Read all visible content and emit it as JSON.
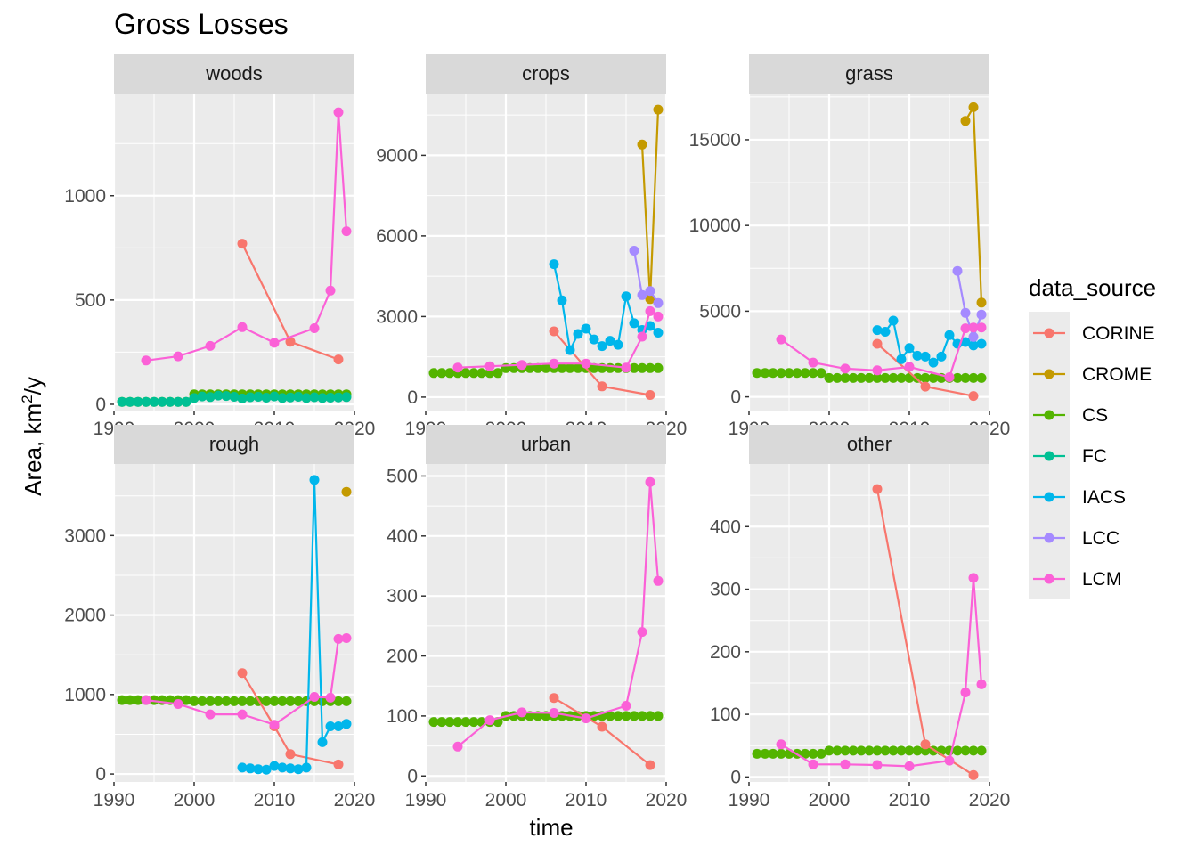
{
  "chart_data": {
    "type": "line",
    "title": "Gross Losses",
    "xlabel": "time",
    "ylabel_prefix": "Area,  km",
    "ylabel_sup": "2",
    "ylabel_suffix": "/y",
    "xlim": [
      1990,
      2020
    ],
    "xticks": [
      1990,
      2000,
      2010,
      2020
    ],
    "legend": {
      "title": "data_source",
      "position": "right"
    },
    "series_colors": {
      "CORINE": "#F8766D",
      "CROME": "#C49A00",
      "CS": "#53B400",
      "FC": "#00C094",
      "IACS": "#00B6EB",
      "LCC": "#A58AFF",
      "LCM": "#FB61D7"
    },
    "panels": [
      {
        "label": "woods",
        "ylim": [
          -30,
          1490
        ],
        "yticks": [
          0,
          500,
          1000
        ],
        "series": [
          {
            "name": "CS",
            "x": [
              1991,
              1992,
              1993,
              1994,
              1995,
              1996,
              1997,
              1998,
              1999,
              2000,
              2001,
              2002,
              2003,
              2004,
              2005,
              2006,
              2007,
              2008,
              2009,
              2010,
              2011,
              2012,
              2013,
              2014,
              2015,
              2016,
              2017,
              2018,
              2019
            ],
            "y": [
              12,
              12,
              12,
              12,
              12,
              12,
              12,
              12,
              12,
              48,
              48,
              48,
              48,
              48,
              48,
              48,
              48,
              48,
              48,
              48,
              48,
              48,
              48,
              48,
              48,
              48,
              48,
              48,
              48
            ]
          },
          {
            "name": "FC",
            "x": [
              1991,
              1992,
              1993,
              1994,
              1995,
              1996,
              1997,
              1998,
              1999,
              2000,
              2001,
              2002,
              2003,
              2004,
              2005,
              2006,
              2007,
              2008,
              2009,
              2010,
              2011,
              2012,
              2013,
              2014,
              2015,
              2016,
              2017,
              2018,
              2019
            ],
            "y": [
              12,
              12,
              12,
              12,
              12,
              12,
              12,
              12,
              12,
              30,
              38,
              35,
              42,
              40,
              36,
              28,
              34,
              36,
              32,
              38,
              30,
              33,
              36,
              30,
              34,
              30,
              32,
              33,
              35
            ]
          },
          {
            "name": "CORINE",
            "x": [
              2006,
              2012,
              2018
            ],
            "y": [
              770,
              300,
              215
            ]
          },
          {
            "name": "LCM",
            "x": [
              1994,
              1998,
              2002,
              2006,
              2010,
              2015,
              2017,
              2018,
              2019
            ],
            "y": [
              210,
              230,
              280,
              370,
              295,
              365,
              545,
              1400,
              830
            ]
          }
        ]
      },
      {
        "label": "crops",
        "ylim": [
          -500,
          11300
        ],
        "yticks": [
          0,
          3000,
          6000,
          9000
        ],
        "series": [
          {
            "name": "CS",
            "x": [
              1991,
              1992,
              1993,
              1994,
              1995,
              1996,
              1997,
              1998,
              1999,
              2000,
              2001,
              2002,
              2003,
              2004,
              2005,
              2006,
              2007,
              2008,
              2009,
              2010,
              2011,
              2012,
              2013,
              2014,
              2015,
              2016,
              2017,
              2018,
              2019
            ],
            "y": [
              900,
              900,
              900,
              900,
              900,
              900,
              900,
              900,
              900,
              1080,
              1080,
              1080,
              1080,
              1080,
              1080,
              1080,
              1080,
              1080,
              1080,
              1080,
              1080,
              1080,
              1080,
              1080,
              1080,
              1080,
              1080,
              1080,
              1080
            ]
          },
          {
            "name": "CORINE",
            "x": [
              2006,
              2012,
              2018
            ],
            "y": [
              2450,
              400,
              80
            ]
          },
          {
            "name": "IACS",
            "x": [
              2006,
              2007,
              2008,
              2009,
              2010,
              2011,
              2012,
              2013,
              2014,
              2015,
              2016,
              2017,
              2018,
              2019
            ],
            "y": [
              4950,
              3600,
              1750,
              2350,
              2550,
              2150,
              1900,
              2100,
              1950,
              3750,
              2750,
              2500,
              2650,
              2400
            ]
          },
          {
            "name": "CROME",
            "x": [
              2017,
              2018,
              2019
            ],
            "y": [
              9400,
              3650,
              10700
            ]
          },
          {
            "name": "LCC",
            "x": [
              2016,
              2017,
              2018,
              2019
            ],
            "y": [
              5450,
              3800,
              3950,
              3500
            ]
          },
          {
            "name": "LCM",
            "x": [
              1994,
              1998,
              2002,
              2006,
              2010,
              2015,
              2017,
              2018,
              2019
            ],
            "y": [
              1100,
              1150,
              1200,
              1250,
              1250,
              1100,
              2250,
              3200,
              3000
            ]
          }
        ]
      },
      {
        "label": "grass",
        "ylim": [
          -800,
          17700
        ],
        "yticks": [
          0,
          5000,
          10000,
          15000
        ],
        "series": [
          {
            "name": "CS",
            "x": [
              1991,
              1992,
              1993,
              1994,
              1995,
              1996,
              1997,
              1998,
              1999,
              2000,
              2001,
              2002,
              2003,
              2004,
              2005,
              2006,
              2007,
              2008,
              2009,
              2010,
              2011,
              2012,
              2013,
              2014,
              2015,
              2016,
              2017,
              2018,
              2019
            ],
            "y": [
              1400,
              1400,
              1400,
              1400,
              1400,
              1400,
              1400,
              1400,
              1400,
              1100,
              1100,
              1100,
              1100,
              1100,
              1100,
              1100,
              1100,
              1100,
              1100,
              1100,
              1100,
              1100,
              1100,
              1100,
              1100,
              1100,
              1100,
              1100,
              1100
            ]
          },
          {
            "name": "CORINE",
            "x": [
              2006,
              2012,
              2018
            ],
            "y": [
              3100,
              600,
              50
            ]
          },
          {
            "name": "IACS",
            "x": [
              2006,
              2007,
              2008,
              2009,
              2010,
              2011,
              2012,
              2013,
              2014,
              2015,
              2016,
              2017,
              2018,
              2019
            ],
            "y": [
              3900,
              3800,
              4450,
              2200,
              2850,
              2400,
              2350,
              2000,
              2350,
              3600,
              3100,
              3200,
              3000,
              3100
            ]
          },
          {
            "name": "CROME",
            "x": [
              2017,
              2018,
              2019
            ],
            "y": [
              16100,
              16900,
              5500
            ]
          },
          {
            "name": "LCC",
            "x": [
              2016,
              2017,
              2018,
              2019
            ],
            "y": [
              7350,
              4900,
              3500,
              4800
            ]
          },
          {
            "name": "LCM",
            "x": [
              1994,
              1998,
              2002,
              2006,
              2010,
              2015,
              2017,
              2018,
              2019
            ],
            "y": [
              3350,
              2000,
              1650,
              1550,
              1750,
              1150,
              4000,
              4050,
              4050
            ]
          }
        ]
      },
      {
        "label": "rough",
        "ylim": [
          -100,
          3900
        ],
        "yticks": [
          0,
          1000,
          2000,
          3000
        ],
        "series": [
          {
            "name": "CS",
            "x": [
              1991,
              1992,
              1993,
              1994,
              1995,
              1996,
              1997,
              1998,
              1999,
              2000,
              2001,
              2002,
              2003,
              2004,
              2005,
              2006,
              2007,
              2008,
              2009,
              2010,
              2011,
              2012,
              2013,
              2014,
              2015,
              2016,
              2017,
              2018,
              2019
            ],
            "y": [
              930,
              930,
              930,
              930,
              930,
              930,
              930,
              930,
              930,
              915,
              915,
              915,
              915,
              915,
              915,
              915,
              915,
              915,
              915,
              915,
              915,
              915,
              915,
              915,
              915,
              915,
              915,
              915,
              915
            ]
          },
          {
            "name": "CORINE",
            "x": [
              2006,
              2010,
              2012,
              2018
            ],
            "y": [
              1270,
              600,
              250,
              120
            ]
          },
          {
            "name": "IACS",
            "x": [
              2006,
              2007,
              2008,
              2009,
              2010,
              2011,
              2012,
              2013,
              2014,
              2015,
              2016,
              2017,
              2018,
              2019
            ],
            "y": [
              80,
              70,
              60,
              55,
              100,
              80,
              70,
              60,
              80,
              3700,
              400,
              600,
              600,
              630
            ]
          },
          {
            "name": "CROME",
            "x": [
              2019
            ],
            "y": [
              3550
            ]
          },
          {
            "name": "LCM",
            "x": [
              1994,
              1998,
              2002,
              2006,
              2010,
              2015,
              2017,
              2018,
              2019
            ],
            "y": [
              930,
              880,
              750,
              750,
              620,
              970,
              960,
              1700,
              1710
            ]
          }
        ]
      },
      {
        "label": "urban",
        "ylim": [
          -10,
          520
        ],
        "yticks": [
          0,
          100,
          200,
          300,
          400,
          500
        ],
        "series": [
          {
            "name": "CS",
            "x": [
              1991,
              1992,
              1993,
              1994,
              1995,
              1996,
              1997,
              1998,
              1999,
              2000,
              2001,
              2002,
              2003,
              2004,
              2005,
              2006,
              2007,
              2008,
              2009,
              2010,
              2011,
              2012,
              2013,
              2014,
              2015,
              2016,
              2017,
              2018,
              2019
            ],
            "y": [
              90,
              90,
              90,
              90,
              90,
              90,
              90,
              90,
              90,
              100,
              100,
              100,
              100,
              100,
              100,
              100,
              100,
              100,
              100,
              100,
              100,
              100,
              100,
              100,
              100,
              100,
              100,
              100,
              100
            ]
          },
          {
            "name": "CORINE",
            "x": [
              2006,
              2012,
              2018
            ],
            "y": [
              130,
              82,
              18
            ]
          },
          {
            "name": "LCM",
            "x": [
              1994,
              1998,
              2002,
              2006,
              2010,
              2015,
              2017,
              2018,
              2019
            ],
            "y": [
              49,
              93,
              106,
              105,
              96,
              117,
              240,
              490,
              325
            ]
          }
        ]
      },
      {
        "label": "other",
        "ylim": [
          -8,
          500
        ],
        "yticks": [
          0,
          100,
          200,
          300,
          400
        ],
        "series": [
          {
            "name": "CS",
            "x": [
              1991,
              1992,
              1993,
              1994,
              1995,
              1996,
              1997,
              1998,
              1999,
              2000,
              2001,
              2002,
              2003,
              2004,
              2005,
              2006,
              2007,
              2008,
              2009,
              2010,
              2011,
              2012,
              2013,
              2014,
              2015,
              2016,
              2017,
              2018,
              2019
            ],
            "y": [
              37,
              37,
              37,
              37,
              37,
              37,
              37,
              37,
              37,
              42,
              42,
              42,
              42,
              42,
              42,
              42,
              42,
              42,
              42,
              42,
              42,
              42,
              42,
              42,
              42,
              42,
              42,
              42,
              42
            ]
          },
          {
            "name": "CORINE",
            "x": [
              2006,
              2012,
              2018
            ],
            "y": [
              460,
              52,
              3
            ]
          },
          {
            "name": "LCM",
            "x": [
              1994,
              1998,
              2002,
              2006,
              2010,
              2015,
              2017,
              2018,
              2019
            ],
            "y": [
              52,
              20,
              20,
              19,
              17,
              26,
              135,
              318,
              148
            ]
          }
        ]
      }
    ]
  }
}
